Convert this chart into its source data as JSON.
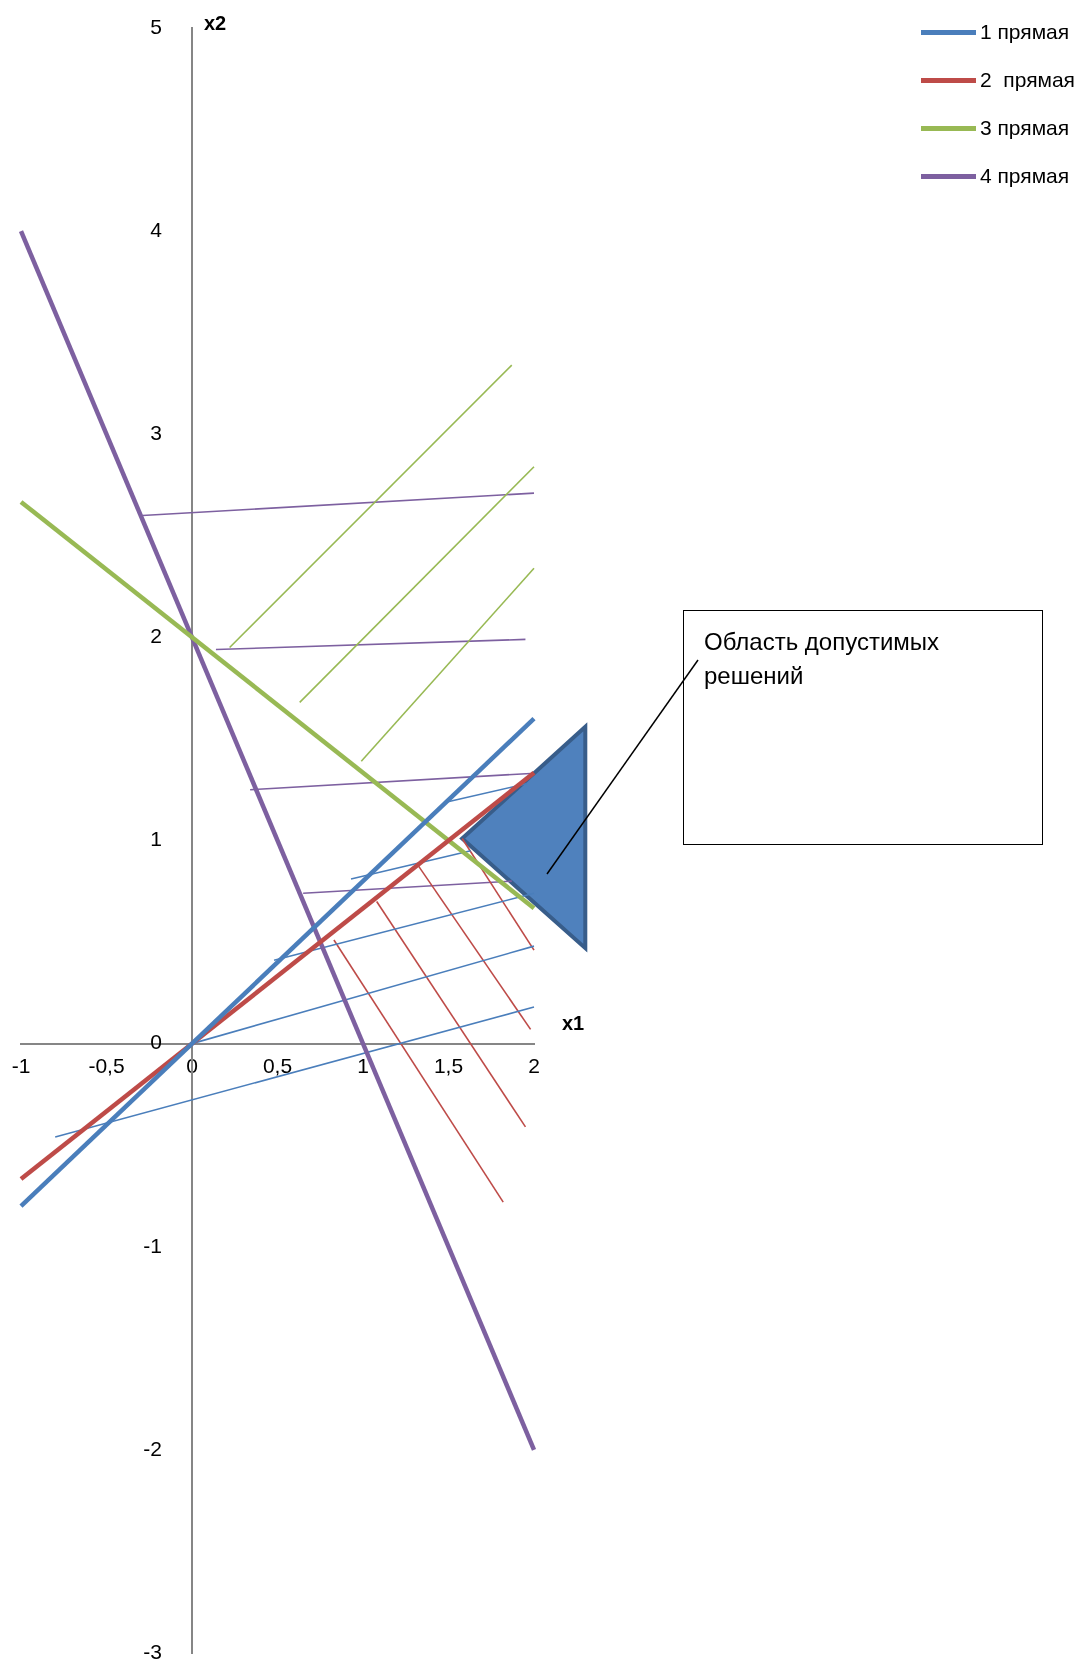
{
  "chart_data": {
    "type": "line",
    "xlabel": "x1",
    "ylabel": "x2",
    "xlim": [
      -1,
      2
    ],
    "ylim": [
      -3,
      5
    ],
    "xticks": [
      -1,
      {
        "value": -0.5,
        "label": "-0,5"
      },
      0,
      {
        "value": 0.5,
        "label": "0,5"
      },
      1,
      {
        "value": 1.5,
        "label": "1,5"
      },
      2
    ],
    "yticks": [
      -3,
      -2,
      -1,
      0,
      1,
      2,
      3,
      4,
      5
    ],
    "series": [
      {
        "name": "1 прямая",
        "color": "#4a7ebb",
        "x": [
          -1,
          2
        ],
        "values": [
          -0.8,
          1.6
        ]
      },
      {
        "name": "2  прямая",
        "color": "#be4b48",
        "x": [
          -1,
          2
        ],
        "values": [
          -0.667,
          1.333
        ]
      },
      {
        "name": "3 прямая",
        "color": "#98b954",
        "x": [
          -1,
          2
        ],
        "values": [
          2.667,
          0.667
        ]
      },
      {
        "name": "4 прямая",
        "color": "#7d60a0",
        "x": [
          -1,
          2
        ],
        "values": [
          4,
          -2
        ]
      },
      {
        "color": "#4a7ebb",
        "x": [
          -0.8,
          2
        ],
        "values": [
          -0.46,
          0.18
        ]
      },
      {
        "color": "#4a7ebb",
        "x": [
          0,
          2
        ],
        "values": [
          0,
          0.48
        ]
      },
      {
        "color": "#4a7ebb",
        "x": [
          0.48,
          2
        ],
        "values": [
          0.41,
          0.74
        ]
      },
      {
        "color": "#4a7ebb",
        "x": [
          0.93,
          1.63
        ],
        "values": [
          0.81,
          0.95
        ]
      },
      {
        "color": "#4a7ebb",
        "x": [
          1.49,
          1.96
        ],
        "values": [
          1.19,
          1.28
        ]
      },
      {
        "color": "#be4b48",
        "x": [
          0.83,
          1.82
        ],
        "values": [
          0.51,
          -0.78
        ]
      },
      {
        "color": "#be4b48",
        "x": [
          1.08,
          1.95
        ],
        "values": [
          0.7,
          -0.41
        ]
      },
      {
        "color": "#be4b48",
        "x": [
          1.32,
          1.98
        ],
        "values": [
          0.88,
          0.07
        ]
      },
      {
        "color": "#be4b48",
        "x": [
          1.58,
          2
        ],
        "values": [
          1.01,
          0.46
        ]
      },
      {
        "color": "#98b954",
        "x": [
          0.22,
          1.87
        ],
        "values": [
          1.95,
          3.34
        ]
      },
      {
        "color": "#98b954",
        "x": [
          0.63,
          2
        ],
        "values": [
          1.68,
          2.84
        ]
      },
      {
        "color": "#98b954",
        "x": [
          0.99,
          2
        ],
        "values": [
          1.39,
          2.34
        ]
      },
      {
        "color": "#7d60a0",
        "x": [
          -0.29,
          2
        ],
        "values": [
          2.6,
          2.71
        ]
      },
      {
        "color": "#7d60a0",
        "x": [
          0.14,
          1.95
        ],
        "values": [
          1.94,
          1.99
        ]
      },
      {
        "color": "#7d60a0",
        "x": [
          0.34,
          1.98
        ],
        "values": [
          1.25,
          1.33
        ]
      },
      {
        "color": "#7d60a0",
        "x": [
          0.65,
          1.87
        ],
        "values": [
          0.74,
          0.8
        ]
      }
    ],
    "annotations": [
      "Область допустимых решений"
    ],
    "grid": false,
    "legend": "top right",
    "marker": "none"
  }
}
